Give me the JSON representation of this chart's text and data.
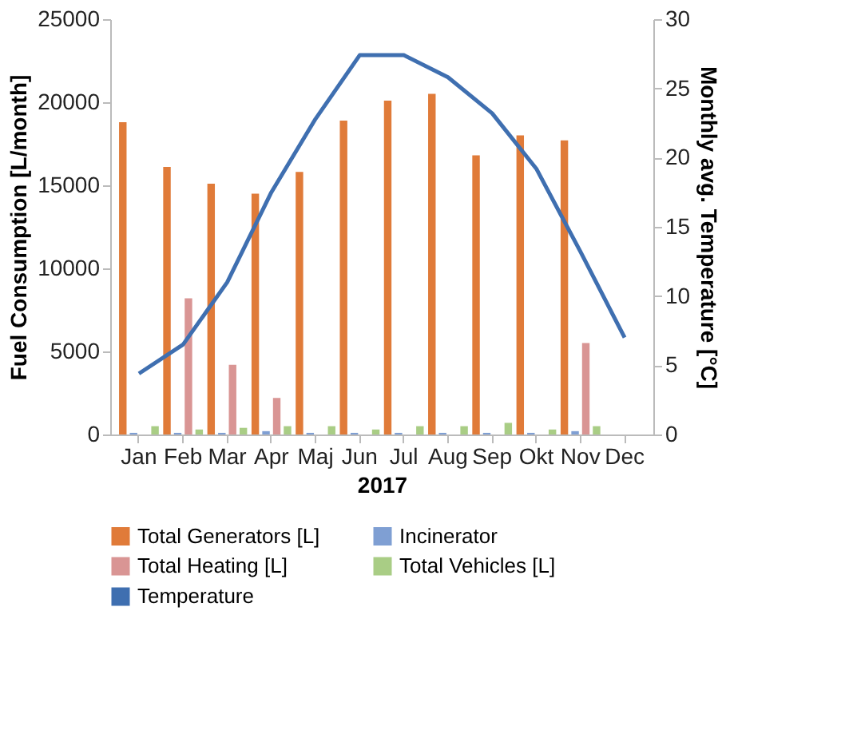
{
  "chart_data": {
    "type": "bar",
    "xlabel": "2017",
    "ylabel": "Fuel Consumption [L/month]",
    "y2label": "Monthly avg. Temperature [°C]",
    "categories": [
      "Jan",
      "Feb",
      "Mar",
      "Apr",
      "Maj",
      "Jun",
      "Jul",
      "Aug",
      "Sep",
      "Okt",
      "Nov",
      "Dec"
    ],
    "series": [
      {
        "name": "Total Generators [L]",
        "color": "#e07b39",
        "values": [
          18800,
          16100,
          15100,
          14500,
          15800,
          18900,
          20100,
          20500,
          16800,
          18000,
          17700,
          null
        ]
      },
      {
        "name": "Incinerator",
        "color": "#7f9fd3",
        "values": [
          100,
          100,
          100,
          200,
          100,
          100,
          100,
          100,
          100,
          100,
          200,
          null
        ]
      },
      {
        "name": "Total Heating [L]",
        "color": "#d99594",
        "values": [
          0,
          8200,
          4200,
          2200,
          0,
          0,
          0,
          0,
          0,
          0,
          5500,
          null
        ]
      },
      {
        "name": "Total Vehicles [L]",
        "color": "#a9cd85",
        "values": [
          500,
          300,
          400,
          500,
          500,
          300,
          500,
          500,
          700,
          300,
          500,
          null
        ]
      },
      {
        "name": "Temperature",
        "type": "line",
        "axis": "y2",
        "color": "#3f6fb0",
        "values": [
          4.4,
          6.5,
          11,
          17.5,
          22.8,
          27.4,
          27.4,
          25.8,
          23.2,
          19.2,
          13.2,
          7.0
        ]
      }
    ],
    "ylim": [
      0,
      25000
    ],
    "yticks": [
      0,
      5000,
      10000,
      15000,
      20000,
      25000
    ],
    "y2lim": [
      0,
      30
    ],
    "y2ticks": [
      0,
      5,
      10,
      15,
      20,
      25,
      30
    ],
    "grid": false,
    "legend": "bottom"
  }
}
